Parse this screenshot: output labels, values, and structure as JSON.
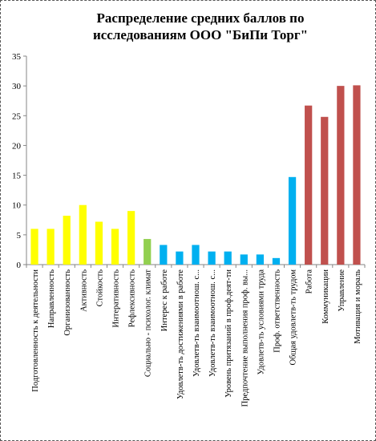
{
  "chart_data": {
    "type": "bar",
    "title_lines": [
      "Распределение средних баллов по",
      "исследованиям ООО \"БиПи Торг\""
    ],
    "ylim": [
      0,
      35
    ],
    "yticks": [
      0,
      5,
      10,
      15,
      20,
      25,
      30,
      35
    ],
    "grid": false,
    "legend": "none",
    "categories": [
      "Подготовленность к деятельности",
      "Направленность",
      "Организованность",
      "Активность",
      "Стойкость",
      "Интеративность",
      "Рефлексивность",
      "Социально - психолог. климат",
      "Интерес к работе",
      "Удовлетв-ть достижениями в работе",
      "Удовлетв-ть взаимоотнош. с...",
      "Удовлетв-ть взаимоотнош. с...",
      "Уровень притязаний в проф.деят-ти",
      "Предпочтение выполнения проф. вы...",
      "Удовлетв-ть условиями труда",
      "Проф. ответственность",
      "Общая удовлетв-ть трудом",
      "Работа",
      "Коммуникации",
      "Управление",
      "Мотивация и мораль"
    ],
    "values": [
      6,
      6,
      8.2,
      10,
      7.2,
      6,
      9,
      4.3,
      3.3,
      2.2,
      3.3,
      2.2,
      2.2,
      1.7,
      1.7,
      1.1,
      14.7,
      26.7,
      24.8,
      30,
      30.1
    ],
    "colors": [
      "#ffff00",
      "#ffff00",
      "#ffff00",
      "#ffff00",
      "#ffff00",
      "#ffff00",
      "#ffff00",
      "#92d050",
      "#00b0f0",
      "#00b0f0",
      "#00b0f0",
      "#00b0f0",
      "#00b0f0",
      "#00b0f0",
      "#00b0f0",
      "#00b0f0",
      "#00b0f0",
      "#c0504d",
      "#c0504d",
      "#c0504d",
      "#c0504d"
    ]
  }
}
